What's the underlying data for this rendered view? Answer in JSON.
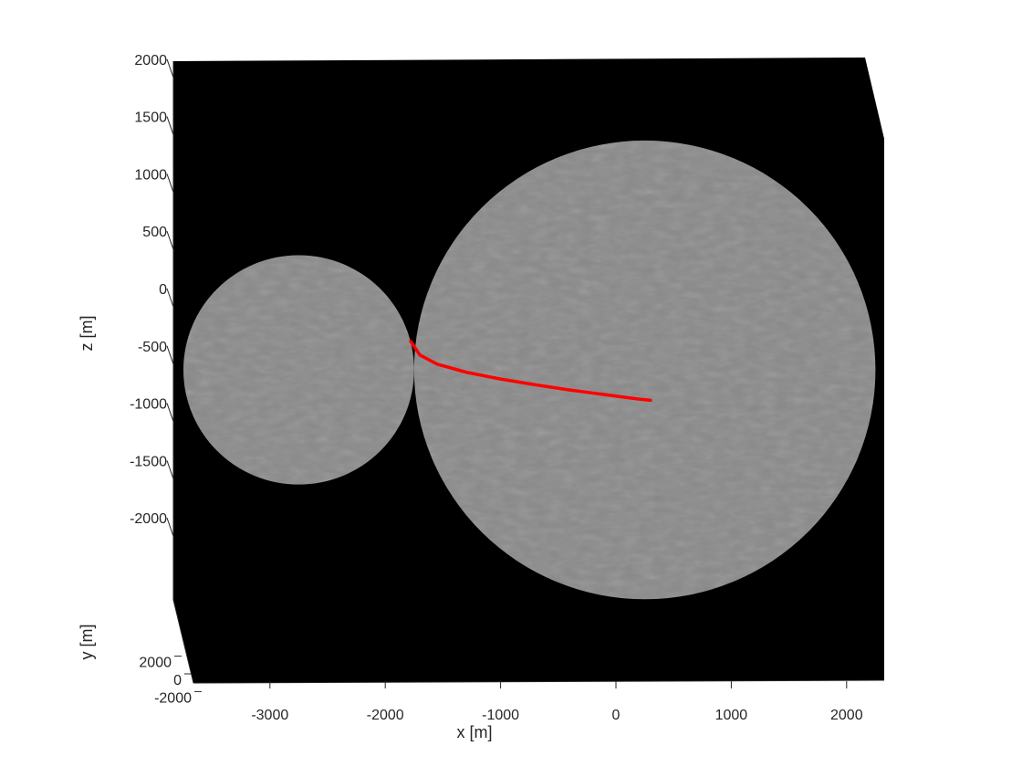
{
  "chart_data": {
    "type": "scatter",
    "title": "",
    "view": "3d",
    "background_color": "#000000",
    "xlabel": "x [m]",
    "ylabel": "y [m]",
    "zlabel": "z [m]",
    "xlim": [
      -3700,
      2300
    ],
    "ylim": [
      -2000,
      2000
    ],
    "zlim": [
      -2300,
      2200
    ],
    "x_ticks": [
      -3000,
      -2000,
      -1000,
      0,
      1000,
      2000
    ],
    "x_tick_labels": [
      "-3000",
      "-2000",
      "-1000",
      "0",
      "1000",
      "2000"
    ],
    "y_ticks": [
      -2000,
      0,
      2000
    ],
    "y_tick_labels": [
      "-2000",
      "0",
      "2000"
    ],
    "z_ticks": [
      2000,
      1500,
      1000,
      500,
      0,
      -500,
      -1000,
      -1500,
      -2000
    ],
    "z_tick_labels": [
      "2000",
      "1500",
      "1000",
      "500",
      "0",
      "-500",
      "-1000",
      "-1500",
      "-2000"
    ],
    "grid": false,
    "legend": "none",
    "spheres": [
      {
        "center": [
          -2750,
          0,
          -550
        ],
        "radius": 1000,
        "color": "#8a8a8a"
      },
      {
        "center": [
          250,
          0,
          -550
        ],
        "radius": 2000,
        "color": "#8a8a8a"
      }
    ],
    "series": [
      {
        "color": "#ff0000",
        "x": [
          -1780,
          -1700,
          -1550,
          -1300,
          -1000,
          -700,
          -400,
          -100,
          200,
          300
        ],
        "z": [
          -300,
          -420,
          -500,
          -570,
          -630,
          -680,
          -725,
          -765,
          -805,
          -815
        ]
      }
    ]
  }
}
